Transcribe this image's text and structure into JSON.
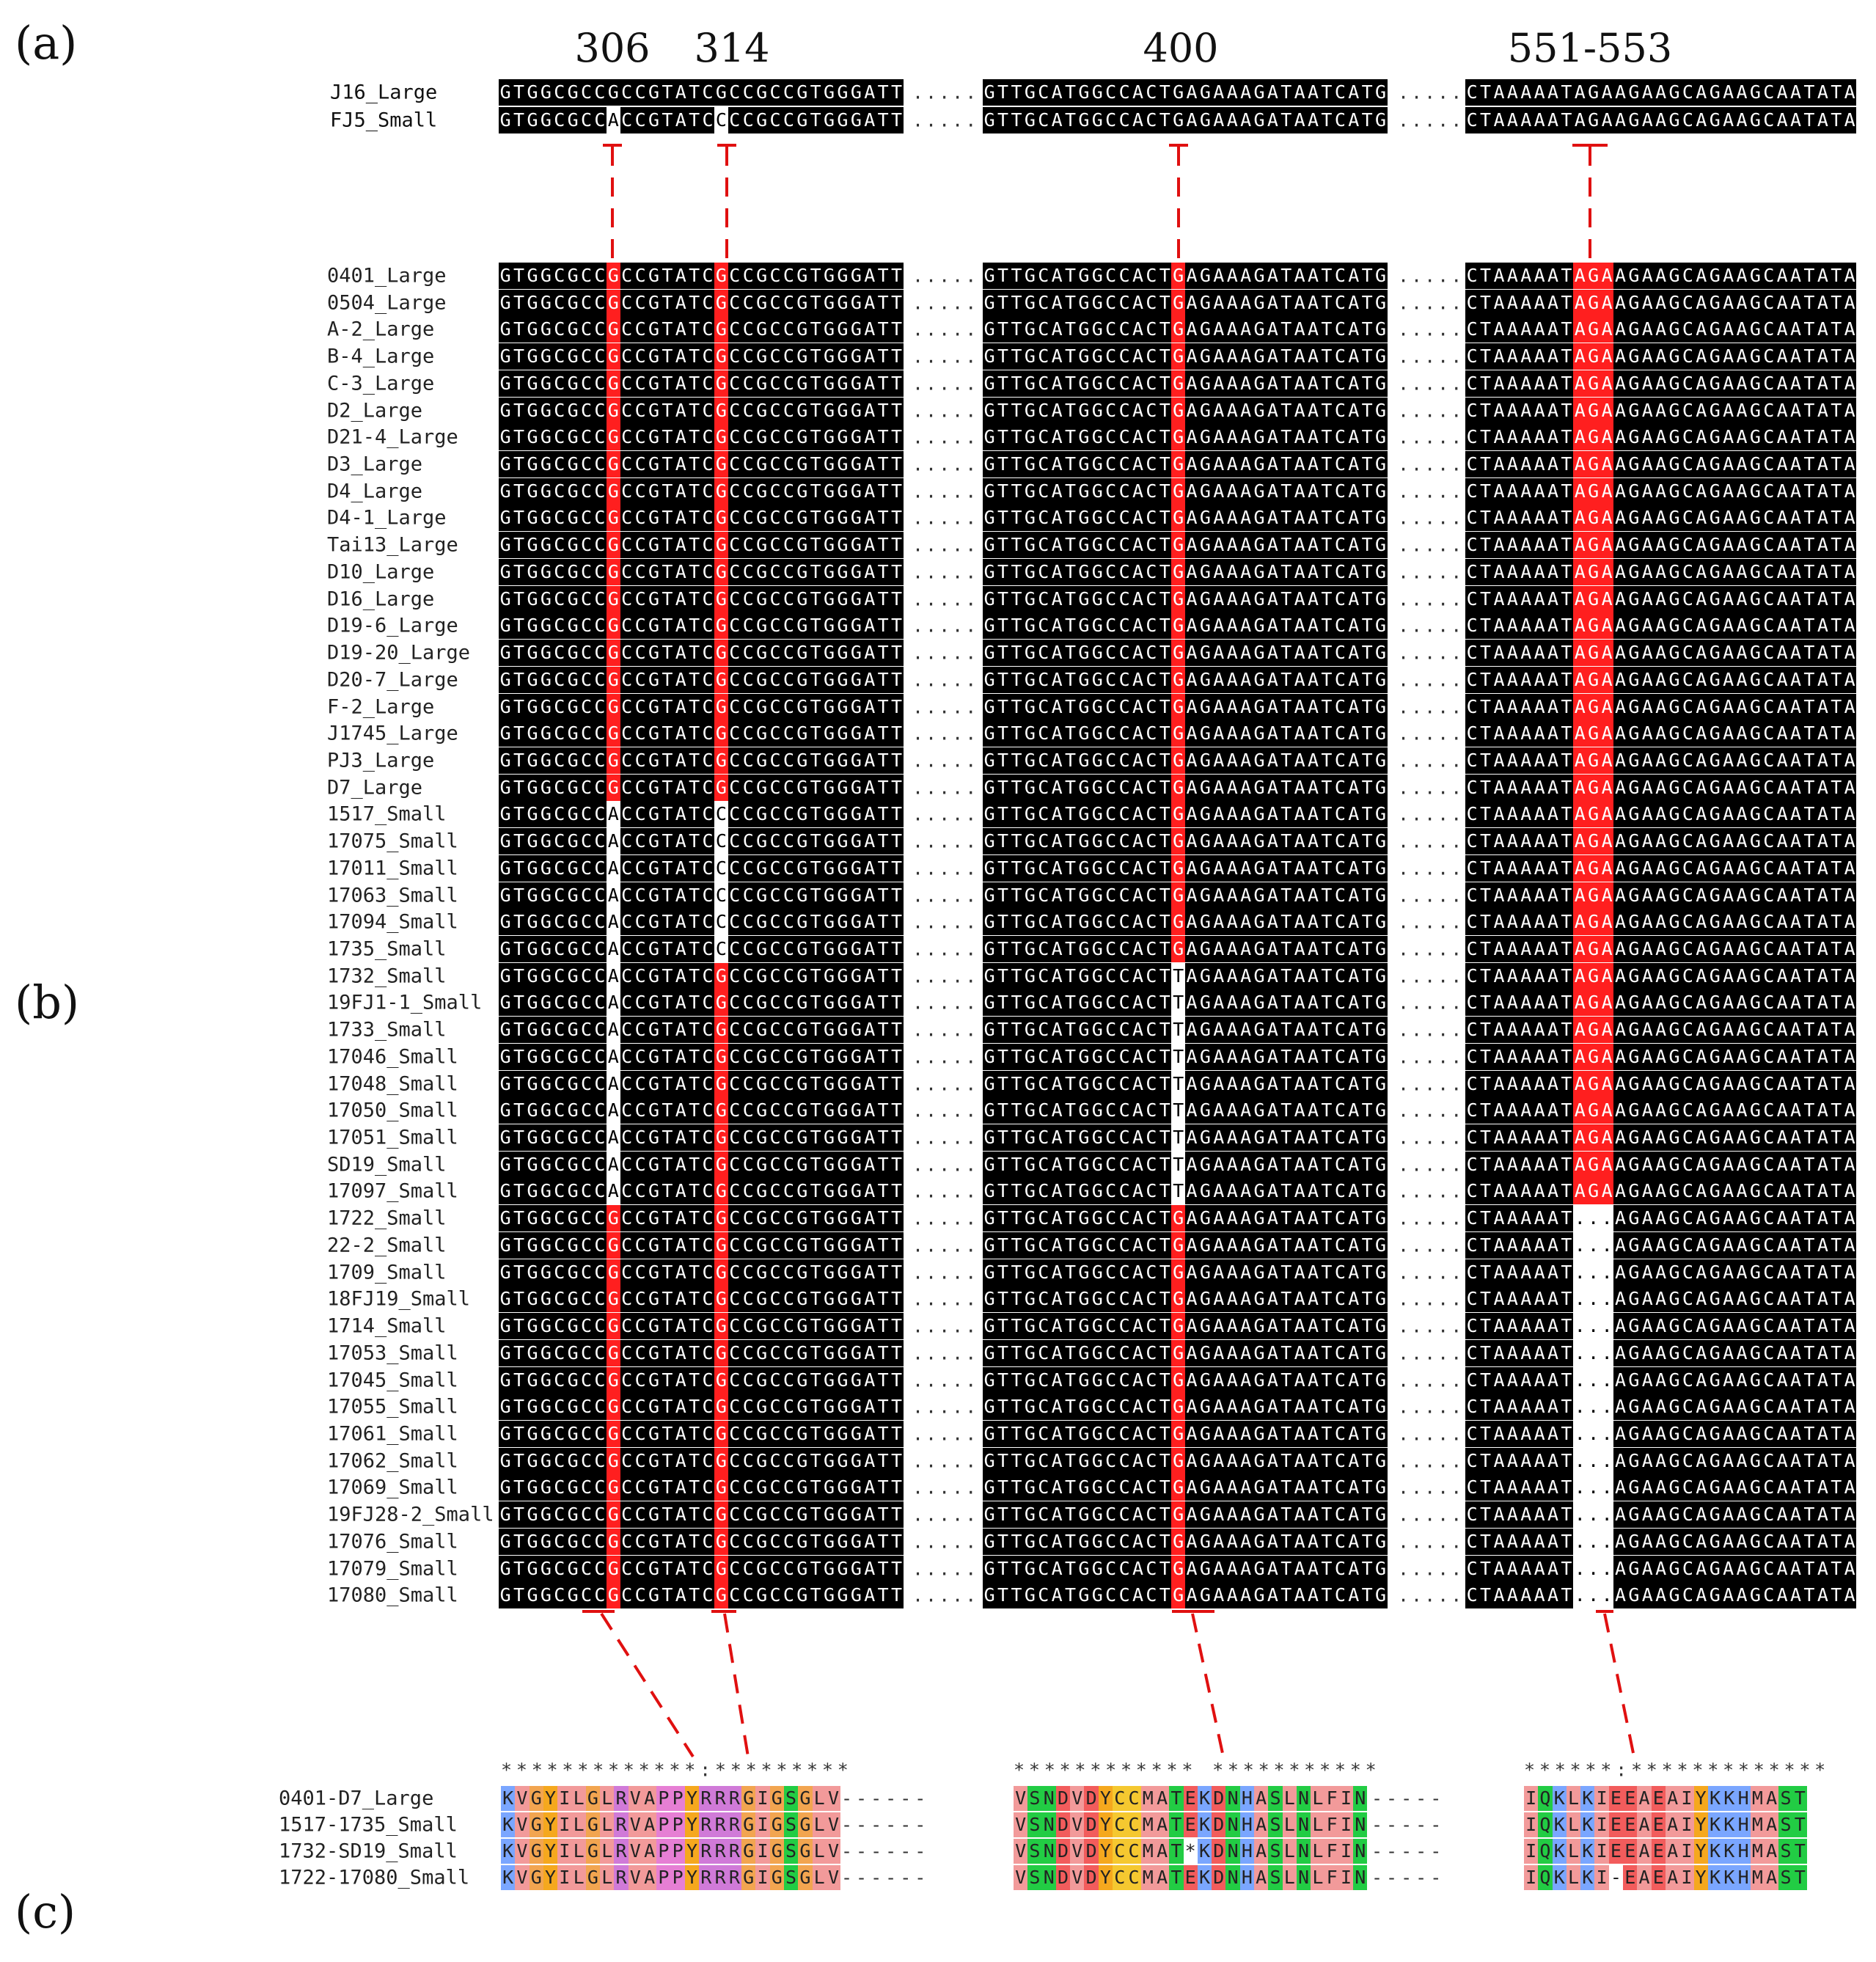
{
  "panels": {
    "a": "(a)",
    "b": "(b)",
    "c": "(c)"
  },
  "positions": [
    "306",
    "314",
    "400",
    "551-553"
  ],
  "top_rows": [
    {
      "name": "J16_Large",
      "seq1": "GTGGCGCCGCCGTATCGCCGCCGTGGGATT",
      "seq2": "GTTGCATGGCCACTGAGAAAGATAATCATG",
      "seq3": "CTAAAAATAGAAGAAGCAGAAGCAATATA"
    },
    {
      "name": "FJ5_Small",
      "seq1": "GTGGCGCCACCGTATCCCCGCCGTGGGATT",
      "seq2": "GTTGCATGGCCACTGAGAAAGATAATCATG",
      "seq3": "CTAAAAATAGAAGAAGCAGAAGCAATATA"
    }
  ],
  "align_rows": [
    {
      "name": "0401_Large",
      "type": "L"
    },
    {
      "name": "0504_Large",
      "type": "L"
    },
    {
      "name": "A-2_Large",
      "type": "L"
    },
    {
      "name": "B-4_Large",
      "type": "L"
    },
    {
      "name": "C-3_Large",
      "type": "L"
    },
    {
      "name": "D2_Large",
      "type": "L"
    },
    {
      "name": "D21-4_Large",
      "type": "L"
    },
    {
      "name": "D3_Large",
      "type": "L"
    },
    {
      "name": "D4_Large",
      "type": "L"
    },
    {
      "name": "D4-1_Large",
      "type": "L"
    },
    {
      "name": "Tai13_Large",
      "type": "L"
    },
    {
      "name": "D10_Large",
      "type": "L"
    },
    {
      "name": "D16_Large",
      "type": "L"
    },
    {
      "name": "D19-6_Large",
      "type": "L"
    },
    {
      "name": "D19-20_Large",
      "type": "L"
    },
    {
      "name": "D20-7_Large",
      "type": "L"
    },
    {
      "name": "F-2_Large",
      "type": "L"
    },
    {
      "name": "J1745_Large",
      "type": "L"
    },
    {
      "name": "PJ3_Large",
      "type": "L"
    },
    {
      "name": "D7_Large",
      "type": "L"
    },
    {
      "name": "1517_Small",
      "type": "S1"
    },
    {
      "name": "17075_Small",
      "type": "S1"
    },
    {
      "name": "17011_Small",
      "type": "S1"
    },
    {
      "name": "17063_Small",
      "type": "S1"
    },
    {
      "name": "17094_Small",
      "type": "S1"
    },
    {
      "name": "1735_Small",
      "type": "S1"
    },
    {
      "name": "1732_Small",
      "type": "S2"
    },
    {
      "name": "19FJ1-1_Small",
      "type": "S2"
    },
    {
      "name": "1733_Small",
      "type": "S2"
    },
    {
      "name": "17046_Small",
      "type": "S2"
    },
    {
      "name": "17048_Small",
      "type": "S2"
    },
    {
      "name": "17050_Small",
      "type": "S2"
    },
    {
      "name": "17051_Small",
      "type": "S2"
    },
    {
      "name": "SD19_Small",
      "type": "S2"
    },
    {
      "name": "17097_Small",
      "type": "S2"
    },
    {
      "name": "1722_Small",
      "type": "S3"
    },
    {
      "name": "22-2_Small",
      "type": "S3"
    },
    {
      "name": "1709_Small",
      "type": "S3"
    },
    {
      "name": "18FJ19_Small",
      "type": "S3"
    },
    {
      "name": "1714_Small",
      "type": "S3"
    },
    {
      "name": "17053_Small",
      "type": "S3"
    },
    {
      "name": "17045_Small",
      "type": "S3"
    },
    {
      "name": "17055_Small",
      "type": "S3"
    },
    {
      "name": "17061_Small",
      "type": "S3"
    },
    {
      "name": "17062_Small",
      "type": "S3"
    },
    {
      "name": "17069_Small",
      "type": "S3"
    },
    {
      "name": "19FJ28-2_Small",
      "type": "S3"
    },
    {
      "name": "17076_Small",
      "type": "S3"
    },
    {
      "name": "17079_Small",
      "type": "S3"
    },
    {
      "name": "17080_Small",
      "type": "S3"
    }
  ],
  "variants": {
    "L": {
      "seq1": "GTGGCGCCGCCGTATCGCCGCCGTGGGATT",
      "seq2": "GTTGCATGGCCACTGAGAAAGATAATCATG",
      "seq3": "CTAAAAATAGAAGAAGCAGAAGCAATATA"
    },
    "S1": {
      "seq1": "GTGGCGCCACCGTATCCCCGCCGTGGGATT",
      "seq2": "GTTGCATGGCCACTGAGAAAGATAATCATG",
      "seq3": "CTAAAAATAGAAGAAGCAGAAGCAATATA"
    },
    "S2": {
      "seq1": "GTGGCGCCACCGTATCGCCGCCGTGGGATT",
      "seq2": "GTTGCATGGCCACTTAGAAAGATAATCATG",
      "seq3": "CTAAAAATAGAAGAAGCAGAAGCAATATA"
    },
    "S3": {
      "seq1": "GTGGCGCCGCCGTATCGCCGCCGTGGGATT",
      "seq2": "GTTGCATGGCCACTGAGAAAGATAATCATG",
      "seq3": "CTAAAAAT...AGAAGCAGAAGCAATATA"
    }
  },
  "dots_separator": ".....",
  "protein": {
    "conservation": [
      "*************:*********",
      "************ ***********",
      "******:*************"
    ],
    "rows": [
      {
        "name": "0401-D7_Large",
        "p1": "KVGYILGLRVAPPYRRRGIGSGLV",
        "p2": "VSNDVDYCCMATEKDNHASLNLFIN",
        "p3": "IQKLKIEEAEAIYKKHMAST"
      },
      {
        "name": "1517-1735_Small",
        "p1": "KVGYILGLRVAPPYRRRGIGSGLV",
        "p2": "VSNDVDYCCMATEKDNHASLNLFIN",
        "p3": "IQKLKIEEAEAIYKKHMAST"
      },
      {
        "name": "1732-SD19_Small",
        "p1": "KVGYILGLRVAPPYRRRGIGSGLV",
        "p2": "VSNDVDYCCMAT*KDNHASLNLFIN",
        "p3": "IQKLKIEEAEAIYKKHMAST"
      },
      {
        "name": "1722-17080_Small",
        "p1": "KVGYILGLRVAPPYRRRGIGSGLV",
        "p2": "VSNDVDYCCMATEKDNHASLNLFIN",
        "p3": "IQKLKI-EAEAIYKKHMAST"
      }
    ],
    "dash_gap": "------",
    "dash_gap_short": "-----"
  },
  "colors": {
    "highlight": "#ff1f1f",
    "block": "#000000",
    "connector": "#e01010"
  }
}
